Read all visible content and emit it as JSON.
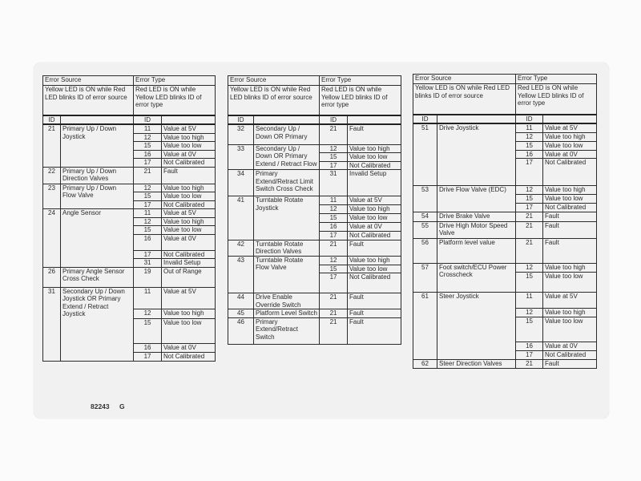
{
  "header": {
    "error_source": "Error Source",
    "error_type": "Error Type",
    "source_desc": "Yellow LED is ON while Red LED blinks ID of error source",
    "type_desc": "Red LED is ON while Yellow LED blinks ID of error type",
    "id_label": "ID"
  },
  "tables": [
    {
      "groups": [
        {
          "id": "21",
          "source": "Primary Up / Down Joystick",
          "types": [
            {
              "id": "11",
              "label": "Value at 5V"
            },
            {
              "id": "12",
              "label": "Value too high"
            },
            {
              "id": "15",
              "label": "Value too low"
            },
            {
              "id": "16",
              "label": "Value at 0V"
            },
            {
              "id": "17",
              "label": "Not Calibrated"
            }
          ]
        },
        {
          "id": "22",
          "source": "Primary Up / Down Direction Valves",
          "types": [
            {
              "id": "21",
              "label": "Fault"
            }
          ]
        },
        {
          "id": "23",
          "source": "Primary Up / Down Flow Valve",
          "types": [
            {
              "id": "12",
              "label": "Value too high"
            },
            {
              "id": "15",
              "label": "Value too low"
            },
            {
              "id": "17",
              "label": "Not Calibrated"
            }
          ]
        },
        {
          "id": "24",
          "source": "Angle Sensor",
          "types": [
            {
              "id": "11",
              "label": "Value at 5V"
            },
            {
              "id": "12",
              "label": "Value too high"
            },
            {
              "id": "15",
              "label": "Value too low"
            },
            {
              "id": "16",
              "label": "Value at 0V"
            },
            {
              "id": "17",
              "label": "Not Calibrated"
            },
            {
              "id": "31",
              "label": "Invalid Setup"
            }
          ]
        },
        {
          "id": "26",
          "source": "Primary Angle Sensor Cross Check",
          "types": [
            {
              "id": "19",
              "label": "Out of Range"
            }
          ]
        },
        {
          "id": "31",
          "source": "Secondary Up / Down Joystick OR Primary Extend / Retract Joystick",
          "types": [
            {
              "id": "11",
              "label": "Value at 5V"
            },
            {
              "id": "12",
              "label": "Value too high"
            },
            {
              "id": "15",
              "label": "Value too low"
            },
            {
              "id": "16",
              "label": "Value at 0V"
            },
            {
              "id": "17",
              "label": "Not Calibrated"
            }
          ]
        }
      ]
    },
    {
      "groups": [
        {
          "id": "32",
          "source": "Secondary Up / Down OR Primary",
          "types": [
            {
              "id": "21",
              "label": "Fault"
            }
          ]
        },
        {
          "id": "33",
          "source": "Secondary Up / Down OR Primary Extend / Retract Flow",
          "types": [
            {
              "id": "12",
              "label": "Value too high"
            },
            {
              "id": "15",
              "label": "Value too low"
            },
            {
              "id": "17",
              "label": "Not Calibrated"
            }
          ]
        },
        {
          "id": "34",
          "source": "Primary Extend/Retract Limit Switch Cross Check",
          "types": [
            {
              "id": "31",
              "label": "Invalid Setup"
            }
          ]
        },
        {
          "id": "41",
          "source": "Turntable Rotate Joystick",
          "types": [
            {
              "id": "11",
              "label": "Value at 5V"
            },
            {
              "id": "12",
              "label": "Value too high"
            },
            {
              "id": "15",
              "label": "Value too low"
            },
            {
              "id": "16",
              "label": "Value at 0V"
            },
            {
              "id": "17",
              "label": "Not Calibrated"
            }
          ]
        },
        {
          "id": "42",
          "source": "Turntable Rotate Direction Valves",
          "types": [
            {
              "id": "21",
              "label": "Fault"
            }
          ]
        },
        {
          "id": "43",
          "source": "Turntable Rotate Flow Valve",
          "types": [
            {
              "id": "12",
              "label": "Value too high"
            },
            {
              "id": "15",
              "label": "Value too low"
            },
            {
              "id": "17",
              "label": "Not Calibrated"
            }
          ]
        },
        {
          "id": "44",
          "source": "Drive Enable Override Switch",
          "types": [
            {
              "id": "21",
              "label": "Fault"
            }
          ]
        },
        {
          "id": "45",
          "source": "Platform Level Switch",
          "types": [
            {
              "id": "21",
              "label": "Fault"
            }
          ]
        },
        {
          "id": "46",
          "source": "Primary Extend/Retract Switch",
          "types": [
            {
              "id": "21",
              "label": "Fault"
            }
          ]
        }
      ]
    },
    {
      "groups": [
        {
          "id": "51",
          "source": "Drive Joystick",
          "types": [
            {
              "id": "11",
              "label": "Value at 5V"
            },
            {
              "id": "12",
              "label": "Value too high"
            },
            {
              "id": "15",
              "label": "Value too low"
            },
            {
              "id": "16",
              "label": "Value at 0V"
            },
            {
              "id": "17",
              "label": "Not Calibrated"
            }
          ]
        },
        {
          "id": "53",
          "source": "Drive Flow Valve (EDC)",
          "types": [
            {
              "id": "12",
              "label": "Value too high"
            },
            {
              "id": "15",
              "label": "Value too low"
            },
            {
              "id": "17",
              "label": "Not Calibrated"
            }
          ]
        },
        {
          "id": "54",
          "source": "Drive Brake Valve",
          "types": [
            {
              "id": "21",
              "label": "Fault"
            }
          ]
        },
        {
          "id": "55",
          "source": "Drive High Motor Speed Valve",
          "types": [
            {
              "id": "21",
              "label": "Fault"
            }
          ]
        },
        {
          "id": "56",
          "source": "Platform level value",
          "types": [
            {
              "id": "21",
              "label": "Fault"
            }
          ]
        },
        {
          "id": "57",
          "source": "Foot switch/ECU Power Crosscheck",
          "types": [
            {
              "id": "12",
              "label": "Value too high"
            },
            {
              "id": "15",
              "label": "Value too low"
            }
          ]
        },
        {
          "id": "61",
          "source": "Steer Joystick",
          "types": [
            {
              "id": "11",
              "label": "Value at 5V"
            },
            {
              "id": "12",
              "label": "Value too high"
            },
            {
              "id": "15",
              "label": "Value too low"
            },
            {
              "id": "16",
              "label": "Value at 0V"
            },
            {
              "id": "17",
              "label": "Not Calibrated"
            }
          ]
        },
        {
          "id": "62",
          "source": "Steer Direction Valves",
          "types": [
            {
              "id": "21",
              "label": "Fault"
            }
          ]
        }
      ]
    }
  ],
  "footer": {
    "part_number": "82243",
    "revision": "G"
  }
}
